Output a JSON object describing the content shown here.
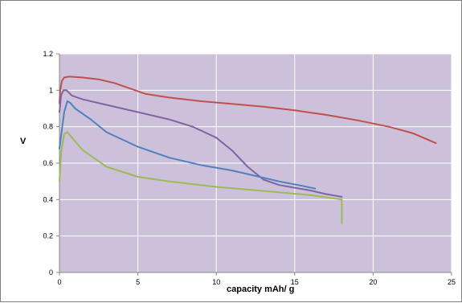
{
  "chart_data": {
    "type": "line",
    "title": "",
    "xlabel": "capacity mAh/ g",
    "ylabel": "V",
    "xlim": [
      0,
      25
    ],
    "ylim": [
      0,
      1.2
    ],
    "x_ticks": [
      0,
      5,
      10,
      15,
      20,
      25
    ],
    "y_ticks": [
      0,
      0.2,
      0.4,
      0.6,
      0.8,
      1,
      1.2
    ],
    "grid": true,
    "legend": "none",
    "colors": {
      "plot_background": "#ccc0da",
      "grid": "#ffffff",
      "axis": "#888888"
    },
    "series": [
      {
        "color": "#c0504d",
        "points": [
          [
            0,
            0.93
          ],
          [
            0.05,
            1.0
          ],
          [
            0.15,
            1.05
          ],
          [
            0.3,
            1.07
          ],
          [
            0.6,
            1.075
          ],
          [
            1.5,
            1.07
          ],
          [
            2.5,
            1.06
          ],
          [
            3.5,
            1.04
          ],
          [
            4.5,
            1.01
          ],
          [
            5.5,
            0.98
          ],
          [
            7,
            0.96
          ],
          [
            9,
            0.94
          ],
          [
            11,
            0.925
          ],
          [
            13,
            0.91
          ],
          [
            15,
            0.89
          ],
          [
            17,
            0.865
          ],
          [
            19,
            0.835
          ],
          [
            21,
            0.8
          ],
          [
            22.5,
            0.765
          ],
          [
            24,
            0.71
          ]
        ]
      },
      {
        "color": "#8064a2",
        "points": [
          [
            0,
            0.88
          ],
          [
            0.1,
            0.97
          ],
          [
            0.25,
            1.0
          ],
          [
            0.45,
            1.0
          ],
          [
            0.8,
            0.97
          ],
          [
            1.5,
            0.95
          ],
          [
            3,
            0.92
          ],
          [
            5,
            0.88
          ],
          [
            7,
            0.84
          ],
          [
            8.5,
            0.8
          ],
          [
            10,
            0.74
          ],
          [
            11,
            0.67
          ],
          [
            12,
            0.58
          ],
          [
            13,
            0.51
          ],
          [
            14,
            0.48
          ],
          [
            15,
            0.465
          ],
          [
            16,
            0.45
          ],
          [
            17,
            0.43
          ],
          [
            18,
            0.415
          ]
        ]
      },
      {
        "color": "#4f81bd",
        "points": [
          [
            0,
            0.68
          ],
          [
            0.15,
            0.78
          ],
          [
            0.3,
            0.88
          ],
          [
            0.5,
            0.94
          ],
          [
            0.7,
            0.93
          ],
          [
            1,
            0.9
          ],
          [
            2,
            0.84
          ],
          [
            3,
            0.77
          ],
          [
            5,
            0.69
          ],
          [
            7,
            0.63
          ],
          [
            9,
            0.59
          ],
          [
            11,
            0.56
          ],
          [
            12.5,
            0.53
          ],
          [
            14,
            0.5
          ],
          [
            15.5,
            0.475
          ],
          [
            16.3,
            0.46
          ]
        ]
      },
      {
        "color": "#9bbb59",
        "points": [
          [
            0,
            0.5
          ],
          [
            0.1,
            0.66
          ],
          [
            0.3,
            0.76
          ],
          [
            0.5,
            0.77
          ],
          [
            0.8,
            0.74
          ],
          [
            1.5,
            0.67
          ],
          [
            3,
            0.58
          ],
          [
            5,
            0.525
          ],
          [
            7,
            0.5
          ],
          [
            10,
            0.47
          ],
          [
            12,
            0.455
          ],
          [
            14,
            0.44
          ],
          [
            16,
            0.425
          ],
          [
            18,
            0.4
          ],
          [
            18,
            0.27
          ]
        ]
      }
    ]
  }
}
